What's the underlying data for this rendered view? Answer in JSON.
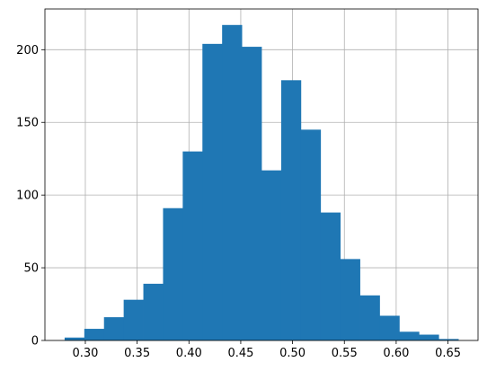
{
  "colors": {
    "bar": "#1f77b4",
    "grid": "#b0b0b0",
    "axis": "#000000",
    "background": "#ffffff"
  },
  "chart_data": {
    "type": "bar",
    "title": "",
    "xlabel": "",
    "ylabel": "",
    "grid": true,
    "bins": [
      [
        0.28,
        0.299
      ],
      [
        0.299,
        0.318
      ],
      [
        0.318,
        0.337
      ],
      [
        0.337,
        0.356
      ],
      [
        0.356,
        0.375
      ],
      [
        0.375,
        0.394
      ],
      [
        0.394,
        0.413
      ],
      [
        0.413,
        0.432
      ],
      [
        0.432,
        0.451
      ],
      [
        0.451,
        0.47
      ],
      [
        0.47,
        0.489
      ],
      [
        0.489,
        0.508
      ],
      [
        0.508,
        0.527
      ],
      [
        0.527,
        0.546
      ],
      [
        0.546,
        0.565
      ],
      [
        0.565,
        0.584
      ],
      [
        0.584,
        0.603
      ],
      [
        0.603,
        0.622
      ],
      [
        0.622,
        0.641
      ],
      [
        0.641,
        0.66
      ]
    ],
    "values": [
      2,
      8,
      16,
      28,
      39,
      91,
      130,
      204,
      217,
      202,
      117,
      179,
      145,
      88,
      56,
      31,
      17,
      6,
      4,
      1
    ],
    "xlim": [
      0.261,
      0.679
    ],
    "ylim": [
      0,
      228
    ],
    "x_ticks": [
      0.3,
      0.35,
      0.4,
      0.45,
      0.5,
      0.55,
      0.6,
      0.65
    ],
    "x_tick_labels": [
      "0.30",
      "0.35",
      "0.40",
      "0.45",
      "0.50",
      "0.55",
      "0.60",
      "0.65"
    ],
    "y_ticks": [
      0,
      50,
      100,
      150,
      200
    ],
    "y_tick_labels": [
      "0",
      "50",
      "100",
      "150",
      "200"
    ]
  }
}
